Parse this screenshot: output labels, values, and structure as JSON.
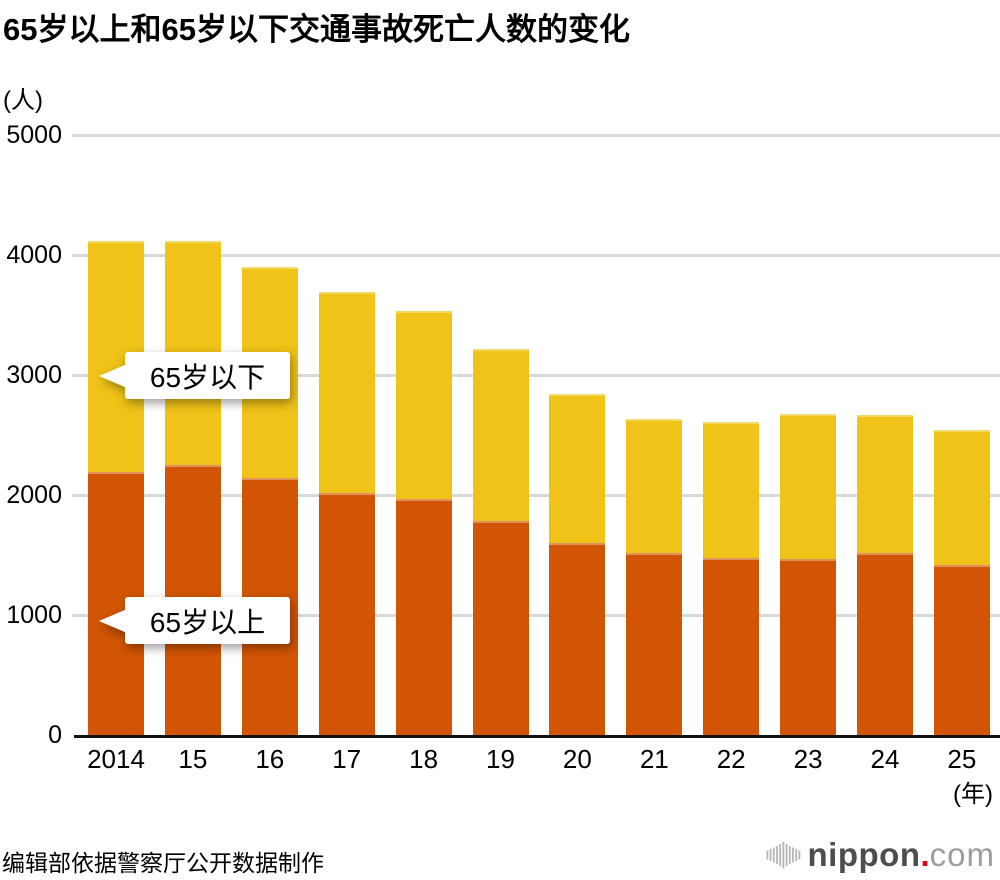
{
  "title": "65岁以上和65岁以下交通事故死亡人数的变化",
  "y_unit": "(人)",
  "x_unit": "(年)",
  "source_note": "编辑部依据警察厅公开数据制作",
  "callouts": {
    "under65": "65岁以下",
    "over65": "65岁以上"
  },
  "logo": {
    "bold": "nippon",
    "dot": ".",
    "light": "com",
    "dot_color": "#e60012"
  },
  "colors": {
    "over65": "#d15504",
    "under65": "#efc318",
    "gridline": "#d8d8d8",
    "axis": "#111111"
  },
  "chart_data": {
    "type": "bar",
    "stacked": true,
    "title": "65岁以上和65岁以下交通事故死亡人数的变化",
    "xlabel": "(年)",
    "ylabel": "(人)",
    "categories": [
      "2014",
      "15",
      "16",
      "17",
      "18",
      "19",
      "20",
      "21",
      "22",
      "23",
      "24",
      "25"
    ],
    "series": [
      {
        "name": "65岁以上",
        "color": "#d15504",
        "values": [
          2193,
          2247,
          2138,
          2020,
          1966,
          1782,
          1596,
          1520,
          1471,
          1465,
          1513,
          1420
        ]
      },
      {
        "name": "65岁以下",
        "color": "#efc318",
        "values": [
          1920,
          1870,
          1766,
          1674,
          1566,
          1433,
          1243,
          1116,
          1139,
          1213,
          1150,
          1120
        ]
      }
    ],
    "totals": [
      4113,
      4117,
      3904,
      3694,
      3532,
      3215,
      2839,
      2636,
      2610,
      2678,
      2663,
      2540
    ],
    "ylim": [
      0,
      5000
    ],
    "yticks": [
      0,
      1000,
      2000,
      3000,
      4000,
      5000
    ],
    "grid": true,
    "legend_position": "callouts-on-bars"
  }
}
